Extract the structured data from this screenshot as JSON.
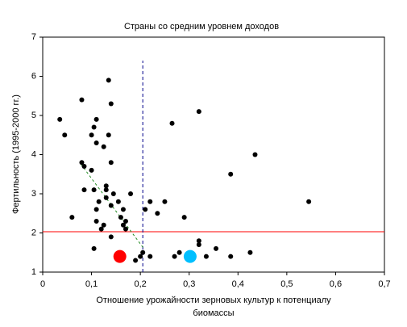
{
  "chart_data": {
    "type": "scatter",
    "title": "Страны со средним уровнем доходов",
    "x_label": [
      "Отношение урожайности зерновых культур к потенциалу",
      "биомассы"
    ],
    "y_label": "Фертильность (1995-2000 гг.)",
    "xlim": [
      0,
      0.7
    ],
    "ylim": [
      1,
      7
    ],
    "xticks": [
      0,
      {
        "value": 0.1,
        "label": "0,1"
      },
      {
        "value": 0.2,
        "label": "0,2"
      },
      {
        "value": 0.3,
        "label": "0,3"
      },
      {
        "value": 0.4,
        "label": "0,4"
      },
      {
        "value": 0.5,
        "label": "0,5"
      },
      {
        "value": 0.6,
        "label": "0,6"
      },
      {
        "value": 0.7,
        "label": "0,7"
      }
    ],
    "yticks": [
      1,
      2,
      3,
      4,
      5,
      6,
      7
    ],
    "series": [
      {
        "color": "#000000",
        "size": 3,
        "x": [
          0.035,
          0.045,
          0.06,
          0.08,
          0.08,
          0.085,
          0.085,
          0.1,
          0.1,
          0.105,
          0.11,
          0.11,
          0.105,
          0.11,
          0.115,
          0.11,
          0.12,
          0.125,
          0.13,
          0.13,
          0.125,
          0.13,
          0.135,
          0.135,
          0.14,
          0.14,
          0.14,
          0.145,
          0.14,
          0.105,
          0.155,
          0.16,
          0.165,
          0.165,
          0.17,
          0.17,
          0.18,
          0.19,
          0.2,
          0.205,
          0.21,
          0.22,
          0.22,
          0.235,
          0.25,
          0.265,
          0.27,
          0.28,
          0.29,
          0.295,
          0.32,
          0.32,
          0.32,
          0.335,
          0.355,
          0.385,
          0.385,
          0.425,
          0.435,
          0.545,
          0.163,
          0.305
        ],
        "y": [
          4.9,
          4.5,
          2.4,
          5.4,
          3.8,
          3.7,
          3.1,
          4.5,
          3.6,
          4.7,
          4.9,
          4.3,
          3.1,
          2.6,
          2.8,
          2.3,
          2.1,
          4.2,
          3.1,
          3.2,
          2.2,
          2.9,
          4.5,
          5.9,
          5.3,
          3.8,
          2.7,
          3.0,
          1.9,
          1.6,
          2.8,
          2.4,
          2.6,
          2.2,
          2.3,
          2.1,
          3.0,
          1.3,
          1.4,
          1.5,
          2.6,
          2.8,
          1.4,
          2.5,
          2.8,
          4.8,
          1.4,
          1.5,
          2.4,
          1.4,
          1.8,
          1.7,
          5.1,
          1.4,
          1.6,
          3.5,
          1.4,
          1.5,
          4.0,
          2.8,
          1.37,
          1.37
        ]
      },
      {
        "color": "#ff0000",
        "size": 8,
        "x": [
          0.158
        ],
        "y": [
          1.4
        ]
      },
      {
        "color": "#00bfff",
        "size": 8,
        "x": [
          0.302
        ],
        "y": [
          1.4
        ]
      }
    ],
    "hline": {
      "y": 2.03,
      "color": "#ff0000"
    },
    "vline": {
      "x": 0.205,
      "y": [
        1,
        6.4
      ],
      "color": "#00008b"
    },
    "trend": {
      "x": [
        0.078,
        0.206
      ],
      "y": [
        3.76,
        1.62
      ],
      "color": "#228b22"
    }
  }
}
